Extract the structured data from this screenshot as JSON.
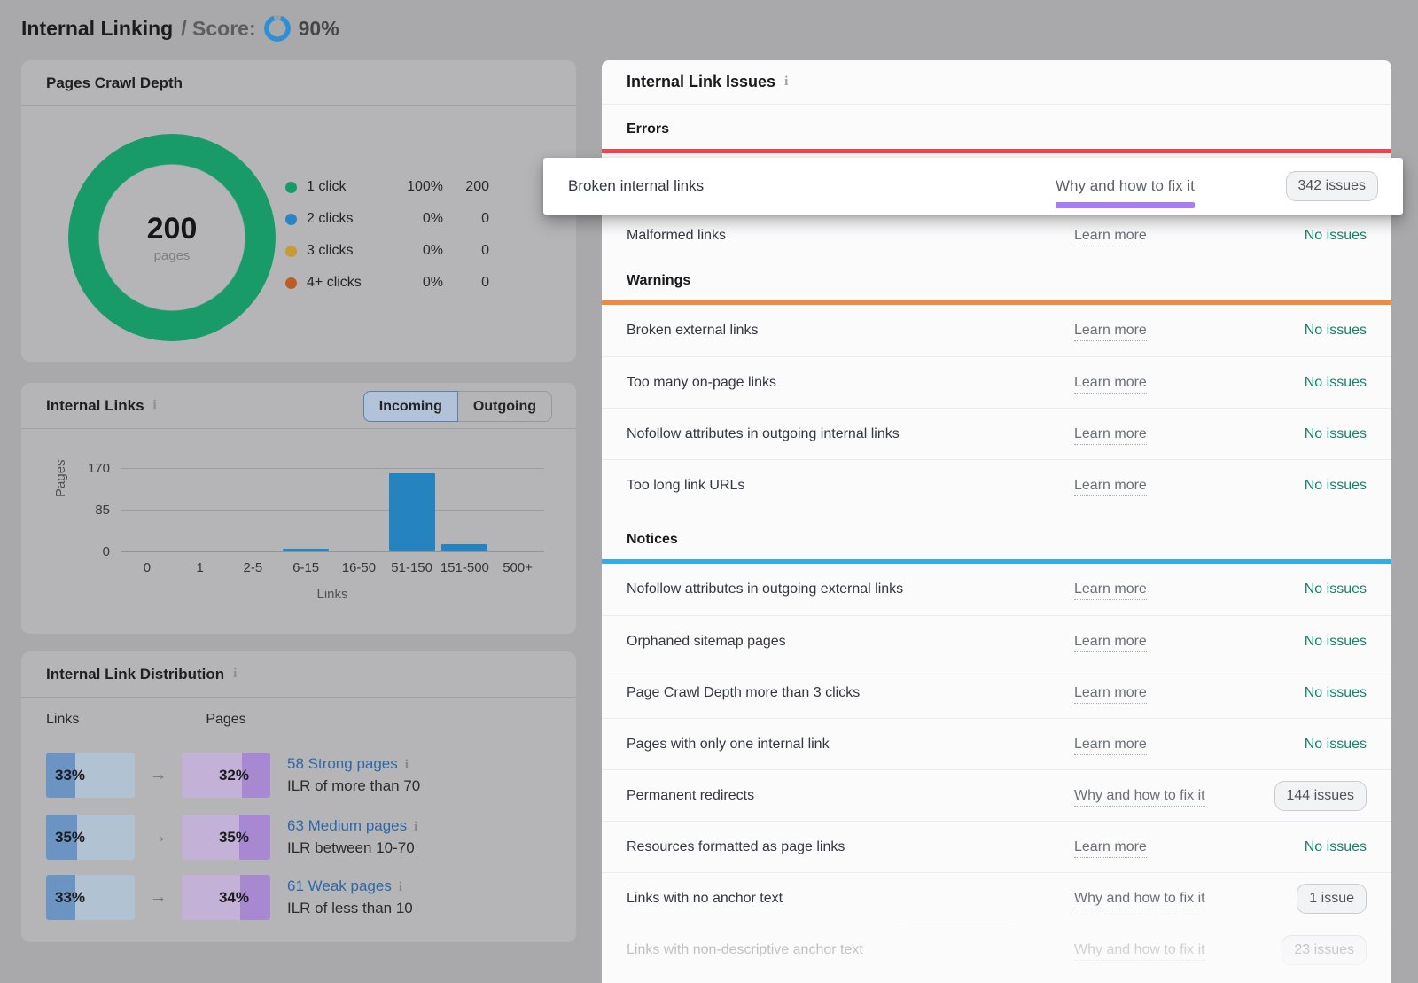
{
  "header": {
    "title": "Internal Linking",
    "score_label": "/ Score:",
    "score_value": "90%",
    "score_ring_color": "#2e8fd4"
  },
  "crawl_depth": {
    "title": "Pages Crawl Depth",
    "center_value": "200",
    "center_unit": "pages",
    "donut_color": "#199b69",
    "legend": [
      {
        "label": "1 click",
        "percent": "100%",
        "count": "200",
        "color": "#199b69"
      },
      {
        "label": "2 clicks",
        "percent": "0%",
        "count": "0",
        "color": "#2a85c3"
      },
      {
        "label": "3 clicks",
        "percent": "0%",
        "count": "0",
        "color": "#c59c37"
      },
      {
        "label": "4+ clicks",
        "percent": "0%",
        "count": "0",
        "color": "#bc5d27"
      }
    ]
  },
  "internal_links": {
    "title": "Internal Links",
    "toggle": {
      "incoming": "Incoming",
      "outgoing": "Outgoing",
      "selected": "Incoming"
    },
    "chart_data": {
      "type": "bar",
      "categories": [
        "0",
        "1",
        "2-5",
        "6-15",
        "16-50",
        "51-150",
        "151-500",
        "500+"
      ],
      "values": [
        0,
        0,
        0,
        5,
        0,
        160,
        15,
        0
      ],
      "title": "Internal Links (Incoming)",
      "xlabel": "Links",
      "ylabel": "Pages",
      "yticks": [
        "170",
        "85",
        "0"
      ],
      "ylim": [
        0,
        190
      ],
      "grid": true,
      "bar_color": "#2583c0",
      "note": "bar values estimated from pixel heights"
    }
  },
  "distribution": {
    "title": "Internal Link Distribution",
    "links_header": "Links",
    "pages_header": "Pages",
    "arrow": "→",
    "rows": [
      {
        "links_pct": "33%",
        "pages_pct": "32%",
        "link": "58 Strong pages",
        "desc": "ILR of more than 70"
      },
      {
        "links_pct": "35%",
        "pages_pct": "35%",
        "link": "63 Medium pages",
        "desc": "ILR between 10-70"
      },
      {
        "links_pct": "33%",
        "pages_pct": "34%",
        "link": "61 Weak pages",
        "desc": "ILR of less than 10"
      }
    ]
  },
  "issues": {
    "title": "Internal Link Issues",
    "highlight": {
      "label": "Broken internal links",
      "link": "Why and how to fix it",
      "badge": "342 issues",
      "underline_color": "#a87cf2"
    },
    "status_no_issues_color": "#15836c",
    "sections": [
      {
        "header": "Errors",
        "bar_color": "#f3454d",
        "rows": [
          {
            "label": "Malformed links",
            "link": "Learn more",
            "status": "No issues"
          }
        ]
      },
      {
        "header": "Warnings",
        "bar_color": "#f08a3c",
        "rows": [
          {
            "label": "Broken external links",
            "link": "Learn more",
            "status": "No issues"
          },
          {
            "label": "Too many on-page links",
            "link": "Learn more",
            "status": "No issues"
          },
          {
            "label": "Nofollow attributes in outgoing internal links",
            "link": "Learn more",
            "status": "No issues"
          },
          {
            "label": "Too long link URLs",
            "link": "Learn more",
            "status": "No issues"
          }
        ]
      },
      {
        "header": "Notices",
        "bar_color": "#34ace4",
        "rows": [
          {
            "label": "Nofollow attributes in outgoing external links",
            "link": "Learn more",
            "status": "No issues"
          },
          {
            "label": "Orphaned sitemap pages",
            "link": "Learn more",
            "status": "No issues"
          },
          {
            "label": "Page Crawl Depth more than 3 clicks",
            "link": "Learn more",
            "status": "No issues"
          },
          {
            "label": "Pages with only one internal link",
            "link": "Learn more",
            "status": "No issues"
          },
          {
            "label": "Permanent redirects",
            "link": "Why and how to fix it",
            "badge": "144 issues"
          },
          {
            "label": "Resources formatted as page links",
            "link": "Learn more",
            "status": "No issues"
          },
          {
            "label": "Links with no anchor text",
            "link": "Why and how to fix it",
            "badge": "1 issue"
          },
          {
            "label": "Links with non-descriptive anchor text",
            "link": "Why and how to fix it",
            "badge": "23 issues"
          }
        ]
      }
    ]
  }
}
